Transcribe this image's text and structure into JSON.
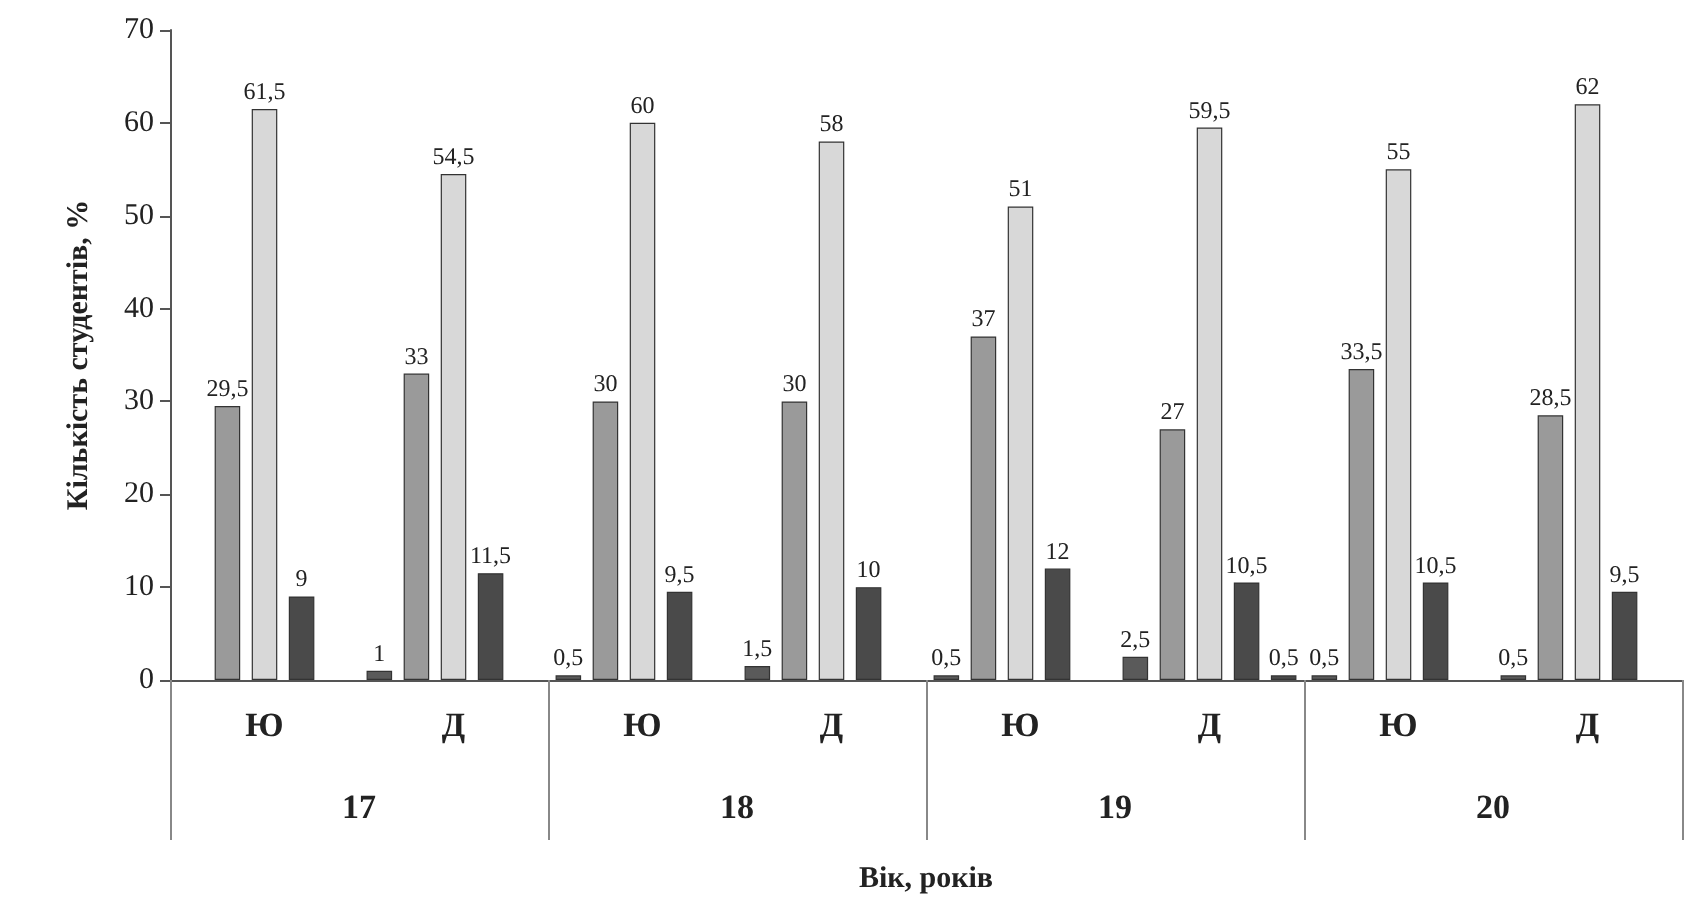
{
  "chart_data": {
    "type": "bar",
    "xlabel": "Вік, років",
    "ylabel": "Кількість студентів, %",
    "categories": [
      "Ю",
      "Д",
      "Ю",
      "Д",
      "Ю",
      "Д",
      "Ю",
      "Д"
    ],
    "annotations": [
      "17",
      "18",
      "19",
      "20"
    ],
    "series": [
      {
        "color": "#5a5a5a",
        "values": [
          null,
          1,
          0.5,
          1.5,
          0.5,
          2.5,
          0.5,
          0.5
        ],
        "value_labels": [
          null,
          "1",
          "0,5",
          "1,5",
          "0,5",
          "2,5",
          "0,5",
          "0,5"
        ]
      },
      {
        "color": "#9a9a9a",
        "values": [
          29.5,
          33,
          30,
          30,
          37,
          27,
          33.5,
          28.5
        ],
        "value_labels": [
          "29,5",
          "33",
          "30",
          "30",
          "37",
          "27",
          "33,5",
          "28,5"
        ]
      },
      {
        "color": "#d8d8d8",
        "values": [
          61.5,
          54.5,
          60,
          58,
          51,
          59.5,
          55,
          62
        ],
        "value_labels": [
          "61,5",
          "54,5",
          "60",
          "58",
          "51",
          "59,5",
          "55",
          "62"
        ]
      },
      {
        "color": "#4a4a4a",
        "values": [
          9,
          11.5,
          9.5,
          10,
          12,
          10.5,
          10.5,
          9.5
        ],
        "value_labels": [
          "9",
          "11,5",
          "9,5",
          "10",
          "12",
          "10,5",
          "10,5",
          "9,5"
        ]
      },
      {
        "color": "#4a4a4a",
        "values": [
          null,
          null,
          null,
          null,
          null,
          0.5,
          null,
          null
        ],
        "value_labels": [
          null,
          null,
          null,
          null,
          null,
          "0,5",
          null,
          null
        ]
      }
    ],
    "ylim": [
      0,
      70
    ],
    "yticks": [
      0,
      10,
      20,
      30,
      40,
      50,
      60,
      70
    ],
    "grid": false
  }
}
